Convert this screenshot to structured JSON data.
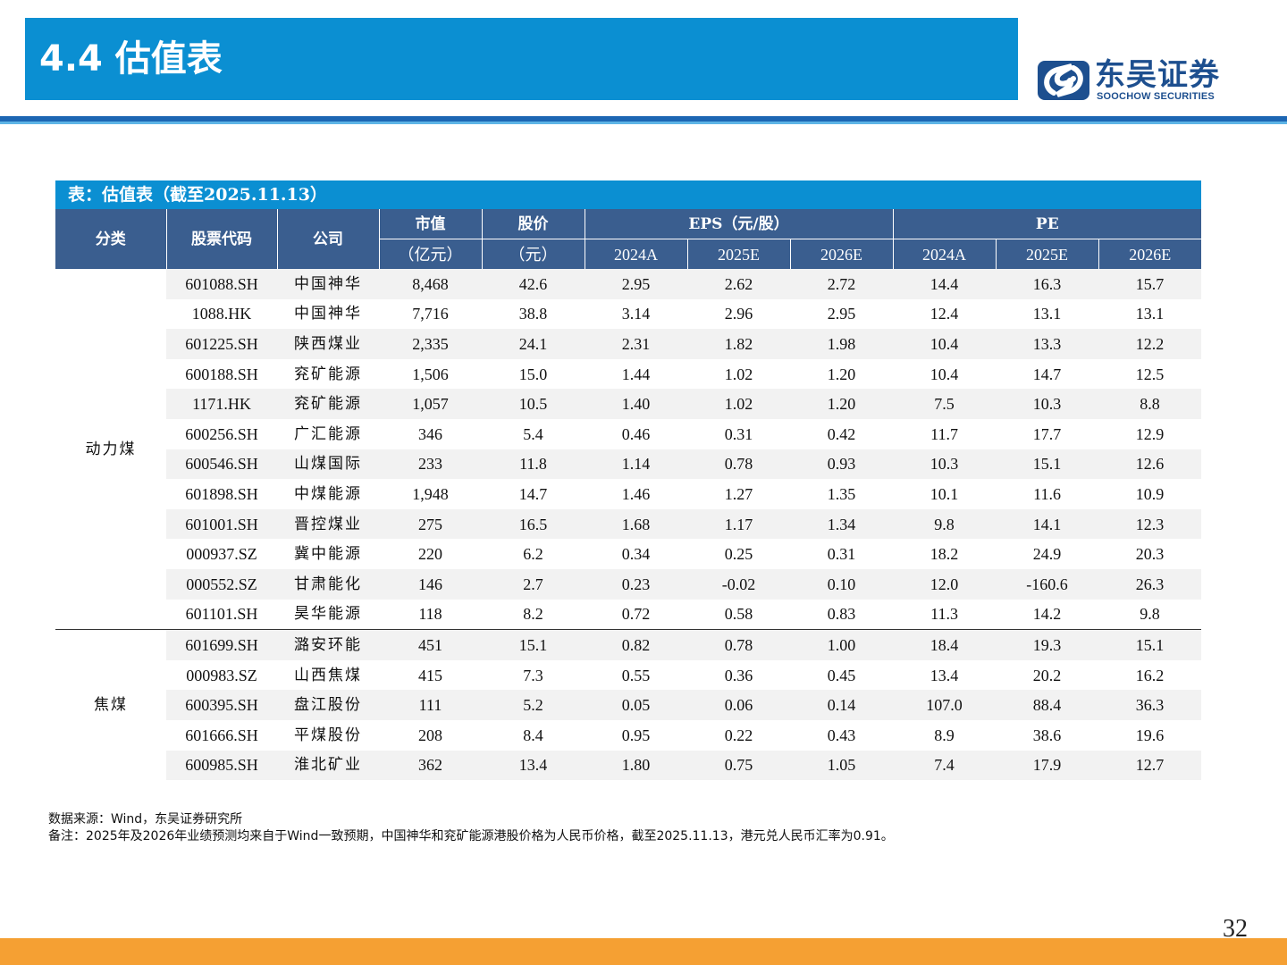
{
  "header": {
    "title": "4.4 估值表",
    "logo_cn": "东吴证券",
    "logo_en": "SOOCHOW SECURITIES",
    "brand_color": "#0b8fd2"
  },
  "table": {
    "caption": "表：估值表（截至2025.11.13）",
    "headers": {
      "category": "分类",
      "code": "股票代码",
      "company": "公司",
      "mcap": "市值",
      "mcap_unit": "（亿元）",
      "price": "股价",
      "price_unit": "（元）",
      "eps": "EPS（元/股）",
      "pe": "PE",
      "years": [
        "2024A",
        "2025E",
        "2026E",
        "2024A",
        "2025E",
        "2026E"
      ]
    },
    "groups": [
      {
        "category": "动力煤",
        "rows": [
          {
            "code": "601088.SH",
            "name": "中国神华",
            "mcap": "8,468",
            "price": "42.6",
            "eps": [
              "2.95",
              "2.62",
              "2.72"
            ],
            "pe": [
              "14.4",
              "16.3",
              "15.7"
            ]
          },
          {
            "code": "1088.HK",
            "name": "中国神华",
            "mcap": "7,716",
            "price": "38.8",
            "eps": [
              "3.14",
              "2.96",
              "2.95"
            ],
            "pe": [
              "12.4",
              "13.1",
              "13.1"
            ]
          },
          {
            "code": "601225.SH",
            "name": "陕西煤业",
            "mcap": "2,335",
            "price": "24.1",
            "eps": [
              "2.31",
              "1.82",
              "1.98"
            ],
            "pe": [
              "10.4",
              "13.3",
              "12.2"
            ]
          },
          {
            "code": "600188.SH",
            "name": "兖矿能源",
            "mcap": "1,506",
            "price": "15.0",
            "eps": [
              "1.44",
              "1.02",
              "1.20"
            ],
            "pe": [
              "10.4",
              "14.7",
              "12.5"
            ]
          },
          {
            "code": "1171.HK",
            "name": "兖矿能源",
            "mcap": "1,057",
            "price": "10.5",
            "eps": [
              "1.40",
              "1.02",
              "1.20"
            ],
            "pe": [
              "7.5",
              "10.3",
              "8.8"
            ]
          },
          {
            "code": "600256.SH",
            "name": "广汇能源",
            "mcap": "346",
            "price": "5.4",
            "eps": [
              "0.46",
              "0.31",
              "0.42"
            ],
            "pe": [
              "11.7",
              "17.7",
              "12.9"
            ]
          },
          {
            "code": "600546.SH",
            "name": "山煤国际",
            "mcap": "233",
            "price": "11.8",
            "eps": [
              "1.14",
              "0.78",
              "0.93"
            ],
            "pe": [
              "10.3",
              "15.1",
              "12.6"
            ]
          },
          {
            "code": "601898.SH",
            "name": "中煤能源",
            "mcap": "1,948",
            "price": "14.7",
            "eps": [
              "1.46",
              "1.27",
              "1.35"
            ],
            "pe": [
              "10.1",
              "11.6",
              "10.9"
            ]
          },
          {
            "code": "601001.SH",
            "name": "晋控煤业",
            "mcap": "275",
            "price": "16.5",
            "eps": [
              "1.68",
              "1.17",
              "1.34"
            ],
            "pe": [
              "9.8",
              "14.1",
              "12.3"
            ]
          },
          {
            "code": "000937.SZ",
            "name": "冀中能源",
            "mcap": "220",
            "price": "6.2",
            "eps": [
              "0.34",
              "0.25",
              "0.31"
            ],
            "pe": [
              "18.2",
              "24.9",
              "20.3"
            ]
          },
          {
            "code": "000552.SZ",
            "name": "甘肃能化",
            "mcap": "146",
            "price": "2.7",
            "eps": [
              "0.23",
              "-0.02",
              "0.10"
            ],
            "pe": [
              "12.0",
              "-160.6",
              "26.3"
            ]
          },
          {
            "code": "601101.SH",
            "name": "昊华能源",
            "mcap": "118",
            "price": "8.2",
            "eps": [
              "0.72",
              "0.58",
              "0.83"
            ],
            "pe": [
              "11.3",
              "14.2",
              "9.8"
            ]
          }
        ]
      },
      {
        "category": "焦煤",
        "rows": [
          {
            "code": "601699.SH",
            "name": "潞安环能",
            "mcap": "451",
            "price": "15.1",
            "eps": [
              "0.82",
              "0.78",
              "1.00"
            ],
            "pe": [
              "18.4",
              "19.3",
              "15.1"
            ]
          },
          {
            "code": "000983.SZ",
            "name": "山西焦煤",
            "mcap": "415",
            "price": "7.3",
            "eps": [
              "0.55",
              "0.36",
              "0.45"
            ],
            "pe": [
              "13.4",
              "20.2",
              "16.2"
            ]
          },
          {
            "code": "600395.SH",
            "name": "盘江股份",
            "mcap": "111",
            "price": "5.2",
            "eps": [
              "0.05",
              "0.06",
              "0.14"
            ],
            "pe": [
              "107.0",
              "88.4",
              "36.3"
            ]
          },
          {
            "code": "601666.SH",
            "name": "平煤股份",
            "mcap": "208",
            "price": "8.4",
            "eps": [
              "0.95",
              "0.22",
              "0.43"
            ],
            "pe": [
              "8.9",
              "38.6",
              "19.6"
            ]
          },
          {
            "code": "600985.SH",
            "name": "淮北矿业",
            "mcap": "362",
            "price": "13.4",
            "eps": [
              "1.80",
              "0.75",
              "1.05"
            ],
            "pe": [
              "7.4",
              "17.9",
              "12.7"
            ]
          }
        ]
      }
    ]
  },
  "notes": {
    "source": "数据来源：Wind，东吴证券研究所",
    "remark": "备注：2025年及2026年业绩预测均来自于Wind一致预期，中国神华和兖矿能源港股价格为人民币价格，截至2025.11.13，港元兑人民币汇率为0.91。"
  },
  "page_number": "32"
}
